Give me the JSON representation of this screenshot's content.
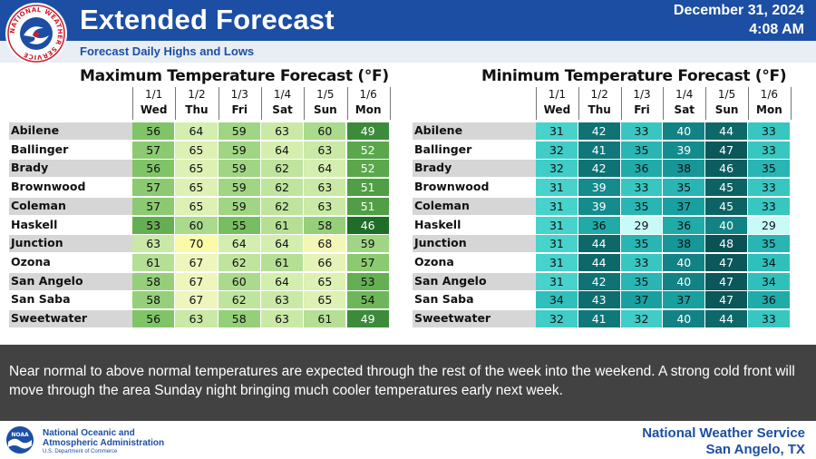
{
  "header": {
    "title": "Extended Forecast",
    "date": "December 31, 2024",
    "time": "4:08 AM",
    "subtitle": "Forecast Daily Highs and Lows",
    "logo_text": "NATIONAL WEATHER SERVICE"
  },
  "colors": {
    "brand_blue": "#1c4ea3",
    "description_bg": "#424242"
  },
  "days": [
    {
      "date": "1/1",
      "day": "Wed"
    },
    {
      "date": "1/2",
      "day": "Thu"
    },
    {
      "date": "1/3",
      "day": "Fri"
    },
    {
      "date": "1/4",
      "day": "Sat"
    },
    {
      "date": "1/5",
      "day": "Sun"
    },
    {
      "date": "1/6",
      "day": "Mon"
    }
  ],
  "max_table": {
    "title": "Maximum Temperature Forecast (°F)",
    "rows": [
      {
        "city": "Abilene",
        "values": [
          "56",
          "64",
          "59",
          "63",
          "60",
          "49"
        ]
      },
      {
        "city": "Ballinger",
        "values": [
          "57",
          "65",
          "59",
          "64",
          "63",
          "52"
        ]
      },
      {
        "city": "Brady",
        "values": [
          "56",
          "65",
          "59",
          "62",
          "64",
          "52"
        ]
      },
      {
        "city": "Brownwood",
        "values": [
          "57",
          "65",
          "59",
          "62",
          "63",
          "51"
        ]
      },
      {
        "city": "Coleman",
        "values": [
          "57",
          "65",
          "59",
          "62",
          "63",
          "51"
        ]
      },
      {
        "city": "Haskell",
        "values": [
          "53",
          "60",
          "55",
          "61",
          "58",
          "46"
        ]
      },
      {
        "city": "Junction",
        "values": [
          "63",
          "70",
          "64",
          "64",
          "68",
          "59"
        ]
      },
      {
        "city": "Ozona",
        "values": [
          "61",
          "67",
          "62",
          "61",
          "66",
          "57"
        ]
      },
      {
        "city": "San Angelo",
        "values": [
          "58",
          "67",
          "60",
          "64",
          "65",
          "53"
        ]
      },
      {
        "city": "San Saba",
        "values": [
          "58",
          "67",
          "62",
          "63",
          "65",
          "54"
        ]
      },
      {
        "city": "Sweetwater",
        "values": [
          "56",
          "63",
          "58",
          "63",
          "61",
          "49"
        ]
      }
    ]
  },
  "min_table": {
    "title": "Minimum Temperature Forecast (°F)",
    "rows": [
      {
        "city": "Abilene",
        "values": [
          "31",
          "42",
          "33",
          "40",
          "44",
          "33"
        ]
      },
      {
        "city": "Ballinger",
        "values": [
          "32",
          "41",
          "35",
          "39",
          "47",
          "33"
        ]
      },
      {
        "city": "Brady",
        "values": [
          "32",
          "42",
          "36",
          "38",
          "46",
          "35"
        ]
      },
      {
        "city": "Brownwood",
        "values": [
          "31",
          "39",
          "33",
          "35",
          "45",
          "33"
        ]
      },
      {
        "city": "Coleman",
        "values": [
          "31",
          "39",
          "35",
          "37",
          "45",
          "33"
        ]
      },
      {
        "city": "Haskell",
        "values": [
          "31",
          "36",
          "29",
          "36",
          "40",
          "29"
        ]
      },
      {
        "city": "Junction",
        "values": [
          "31",
          "44",
          "35",
          "38",
          "48",
          "35"
        ]
      },
      {
        "city": "Ozona",
        "values": [
          "31",
          "44",
          "33",
          "40",
          "47",
          "34"
        ]
      },
      {
        "city": "San Angelo",
        "values": [
          "31",
          "42",
          "35",
          "40",
          "47",
          "34"
        ]
      },
      {
        "city": "San Saba",
        "values": [
          "34",
          "43",
          "37",
          "37",
          "47",
          "36"
        ]
      },
      {
        "city": "Sweetwater",
        "values": [
          "32",
          "41",
          "32",
          "40",
          "44",
          "33"
        ]
      }
    ]
  },
  "description": "Near normal to above normal temperatures are expected through the rest of the week into the weekend. A strong cold front will move through the area Sunday night bringing much cooler temperatures early next week.",
  "footer": {
    "noaa_line1": "National Oceanic and",
    "noaa_line2": "Atmospheric Administration",
    "noaa_line3": "U.S. Department of Commerce",
    "noaa_logo_text": "NOAA",
    "office_line1": "National Weather Service",
    "office_line2": "San Angelo, TX"
  }
}
